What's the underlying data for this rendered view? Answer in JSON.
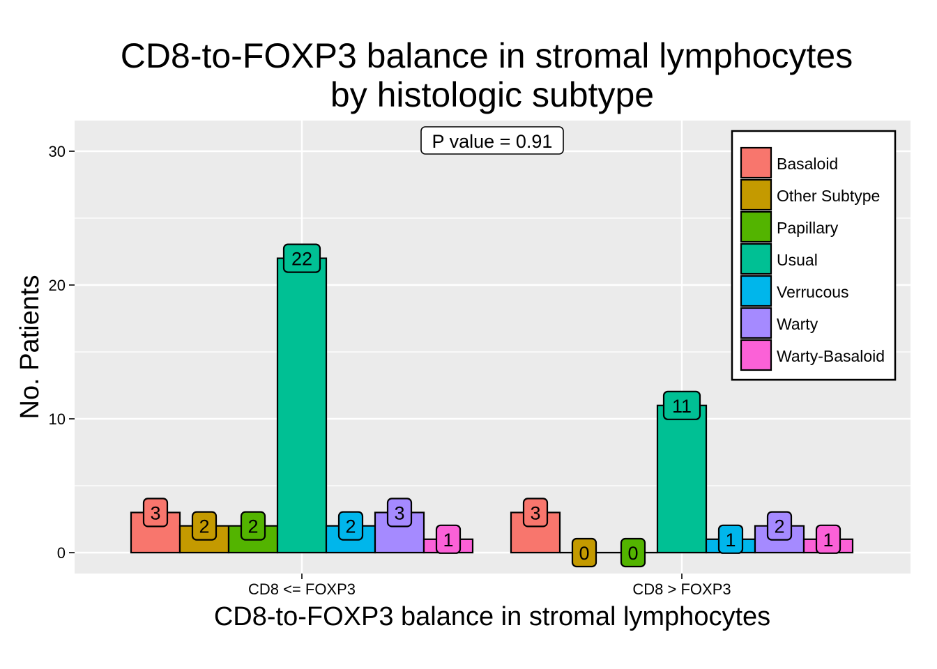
{
  "chart_data": {
    "type": "bar",
    "title": "CD8-to-FOXP3 balance in stromal lymphocytes",
    "title_line2": "by histologic subtype",
    "xlabel": "CD8-to-FOXP3 balance in stromal lymphocytes",
    "ylabel": "No. Patients",
    "ylim": [
      -1.5,
      32.5
    ],
    "yticks": [
      0,
      10,
      20,
      30
    ],
    "grid": true,
    "legend_position": "top-right",
    "annotation": "P value = 0.91",
    "categories": [
      "CD8 <= FOXP3",
      "CD8 > FOXP3"
    ],
    "series": [
      {
        "name": "Basaloid",
        "color": "#F8766D",
        "values": [
          3,
          3
        ]
      },
      {
        "name": "Other Subtype",
        "color": "#C49A00",
        "values": [
          2,
          0
        ]
      },
      {
        "name": "Papillary",
        "color": "#53B400",
        "values": [
          2,
          0
        ]
      },
      {
        "name": "Usual",
        "color": "#00C094",
        "values": [
          22,
          11
        ]
      },
      {
        "name": "Verrucous",
        "color": "#00B6EB",
        "values": [
          2,
          1
        ]
      },
      {
        "name": "Warty",
        "color": "#A58AFF",
        "values": [
          3,
          2
        ]
      },
      {
        "name": "Warty-Basaloid",
        "color": "#FB61D7",
        "values": [
          1,
          1
        ]
      }
    ]
  }
}
